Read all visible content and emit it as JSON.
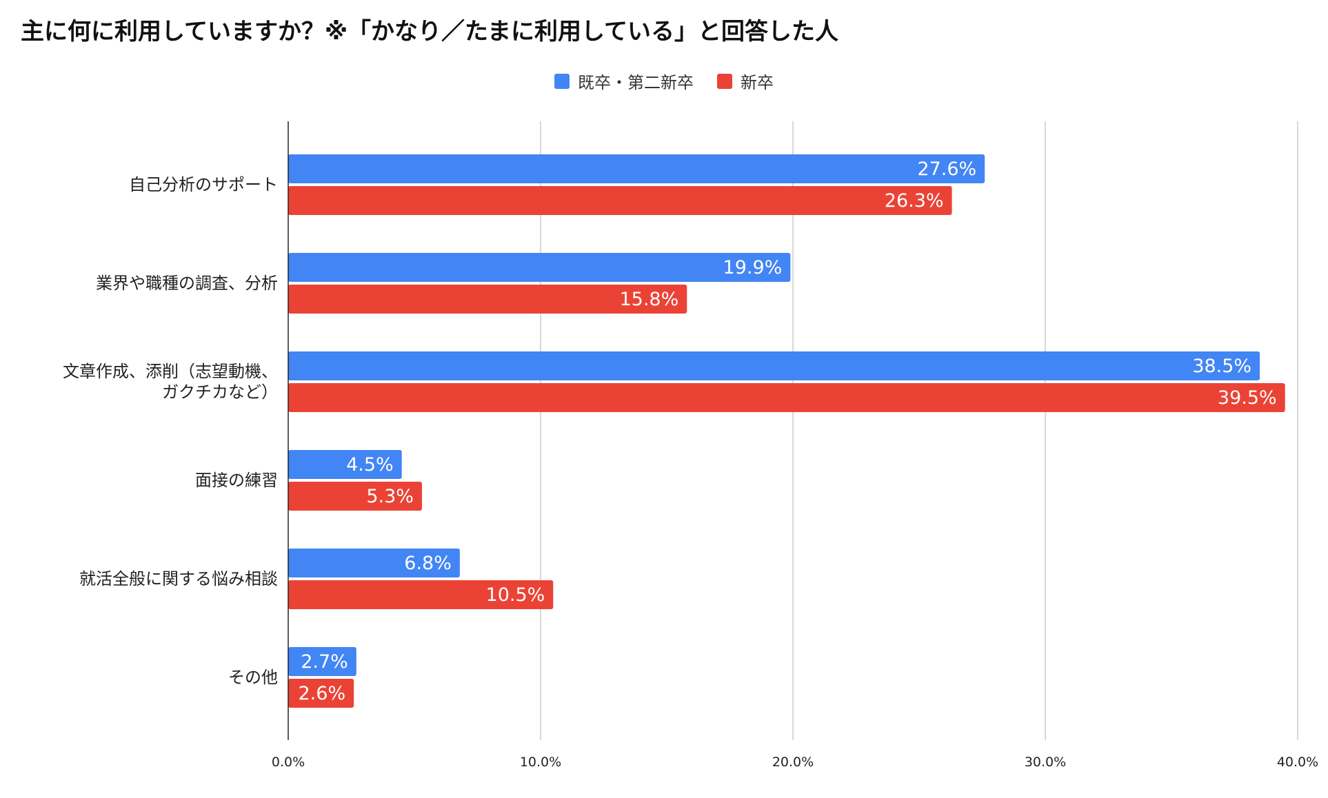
{
  "chart_data": {
    "type": "bar",
    "orientation": "horizontal",
    "title": "主に何に利用していますか？※「かなり／たまに利用している」と回答した人",
    "categories": [
      "自己分析のサポート",
      "業界や職種の調査、分析",
      "文章作成、添削（志望動機、ガクチカなど）",
      "面接の練習",
      "就活全般に関する悩み相談",
      "その他"
    ],
    "category_lines": [
      [
        "自己分析のサポート"
      ],
      [
        "業界や職種の調査、分析"
      ],
      [
        "文章作成、添削（志望動機、",
        "ガクチカなど）"
      ],
      [
        "面接の練習"
      ],
      [
        "就活全般に関する悩み相談"
      ],
      [
        "その他"
      ]
    ],
    "series": [
      {
        "name": "既卒・第二新卒",
        "color": "#4285F4",
        "values": [
          27.6,
          19.9,
          38.5,
          4.5,
          6.8,
          2.7
        ],
        "labels": [
          "27.6%",
          "19.9%",
          "38.5%",
          "4.5%",
          "6.8%",
          "2.7%"
        ]
      },
      {
        "name": "新卒",
        "color": "#EA4335",
        "values": [
          26.3,
          15.8,
          39.5,
          5.3,
          10.5,
          2.6
        ],
        "labels": [
          "26.3%",
          "15.8%",
          "39.5%",
          "5.3%",
          "10.5%",
          "2.6%"
        ]
      }
    ],
    "xlim": [
      0,
      40
    ],
    "xticks": [
      0,
      10,
      20,
      30,
      40
    ],
    "xtick_labels": [
      "0.0%",
      "10.0%",
      "20.0%",
      "30.0%",
      "40.0%"
    ],
    "grid": true,
    "legend_position": "top-center"
  }
}
